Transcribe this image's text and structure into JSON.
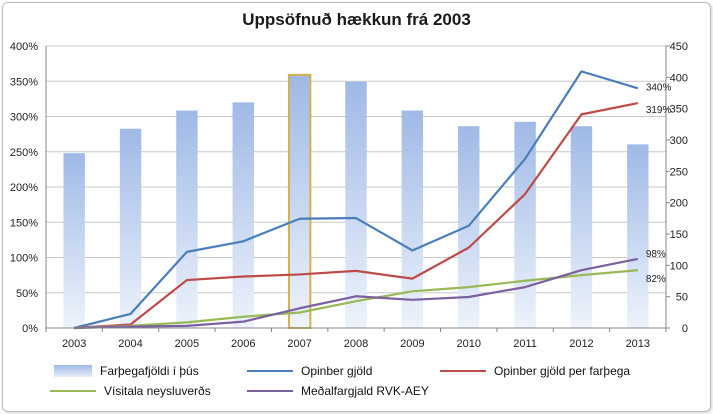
{
  "chart_data": {
    "type": "bar+line",
    "title": "Uppsöfnuð hækkun frá 2003",
    "categories": [
      "2003",
      "2004",
      "2005",
      "2006",
      "2007",
      "2008",
      "2009",
      "2010",
      "2011",
      "2012",
      "2013"
    ],
    "bar_series": {
      "name": "Farþegafjöldi í þús",
      "axis": "right",
      "values": [
        279,
        318,
        347,
        360,
        404,
        393,
        347,
        322,
        329,
        322,
        293
      ],
      "highlight_index": 4,
      "color": "#9fb9e6"
    },
    "line_series": [
      {
        "name": "Opinber gjöld",
        "color": "#4a7ebb",
        "values": [
          0,
          20,
          108,
          123,
          155,
          156,
          110,
          145,
          240,
          364,
          340
        ]
      },
      {
        "name": "Opinber gjöld per farþega",
        "color": "#be4b48",
        "values": [
          0,
          5,
          68,
          73,
          76,
          81,
          70,
          114,
          190,
          303,
          319
        ]
      },
      {
        "name": "Vísitala neysluverðs",
        "color": "#98b954",
        "values": [
          0,
          3,
          8,
          16,
          22,
          38,
          52,
          58,
          67,
          75,
          82
        ]
      },
      {
        "name": "Meðalfargjald RVK-AEY",
        "color": "#7d60a0",
        "values": [
          0,
          2,
          3,
          9,
          28,
          45,
          40,
          44,
          58,
          82,
          98
        ]
      }
    ],
    "data_labels": {
      "Opinber gjöld": "340%",
      "Opinber gjöld per farþega": "319%",
      "Vísitala neysluverðs": "82%",
      "Meðalfargjald RVK-AEY": "98%"
    },
    "left_axis": {
      "min": 0,
      "max": 400,
      "step": 50,
      "tick_labels": [
        "0%",
        "50%",
        "100%",
        "150%",
        "200%",
        "250%",
        "300%",
        "350%",
        "400%"
      ]
    },
    "right_axis": {
      "min": 0,
      "max": 450,
      "step": 50,
      "tick_labels": [
        "0",
        "50",
        "100",
        "150",
        "200",
        "250",
        "300",
        "350",
        "400",
        "450"
      ]
    },
    "grid": true,
    "legend_position": "bottom"
  },
  "legend": [
    {
      "name": "Farþegafjöldi í þús",
      "kind": "bar",
      "color": "#9fb9e6"
    },
    {
      "name": "Opinber gjöld",
      "kind": "line",
      "color": "#4a7ebb"
    },
    {
      "name": "Opinber gjöld per farþega",
      "kind": "line",
      "color": "#be4b48"
    },
    {
      "name": "Vísitala neysluverðs",
      "kind": "line",
      "color": "#98b954"
    },
    {
      "name": "Meðalfargjald RVK-AEY",
      "kind": "line",
      "color": "#7d60a0"
    }
  ]
}
